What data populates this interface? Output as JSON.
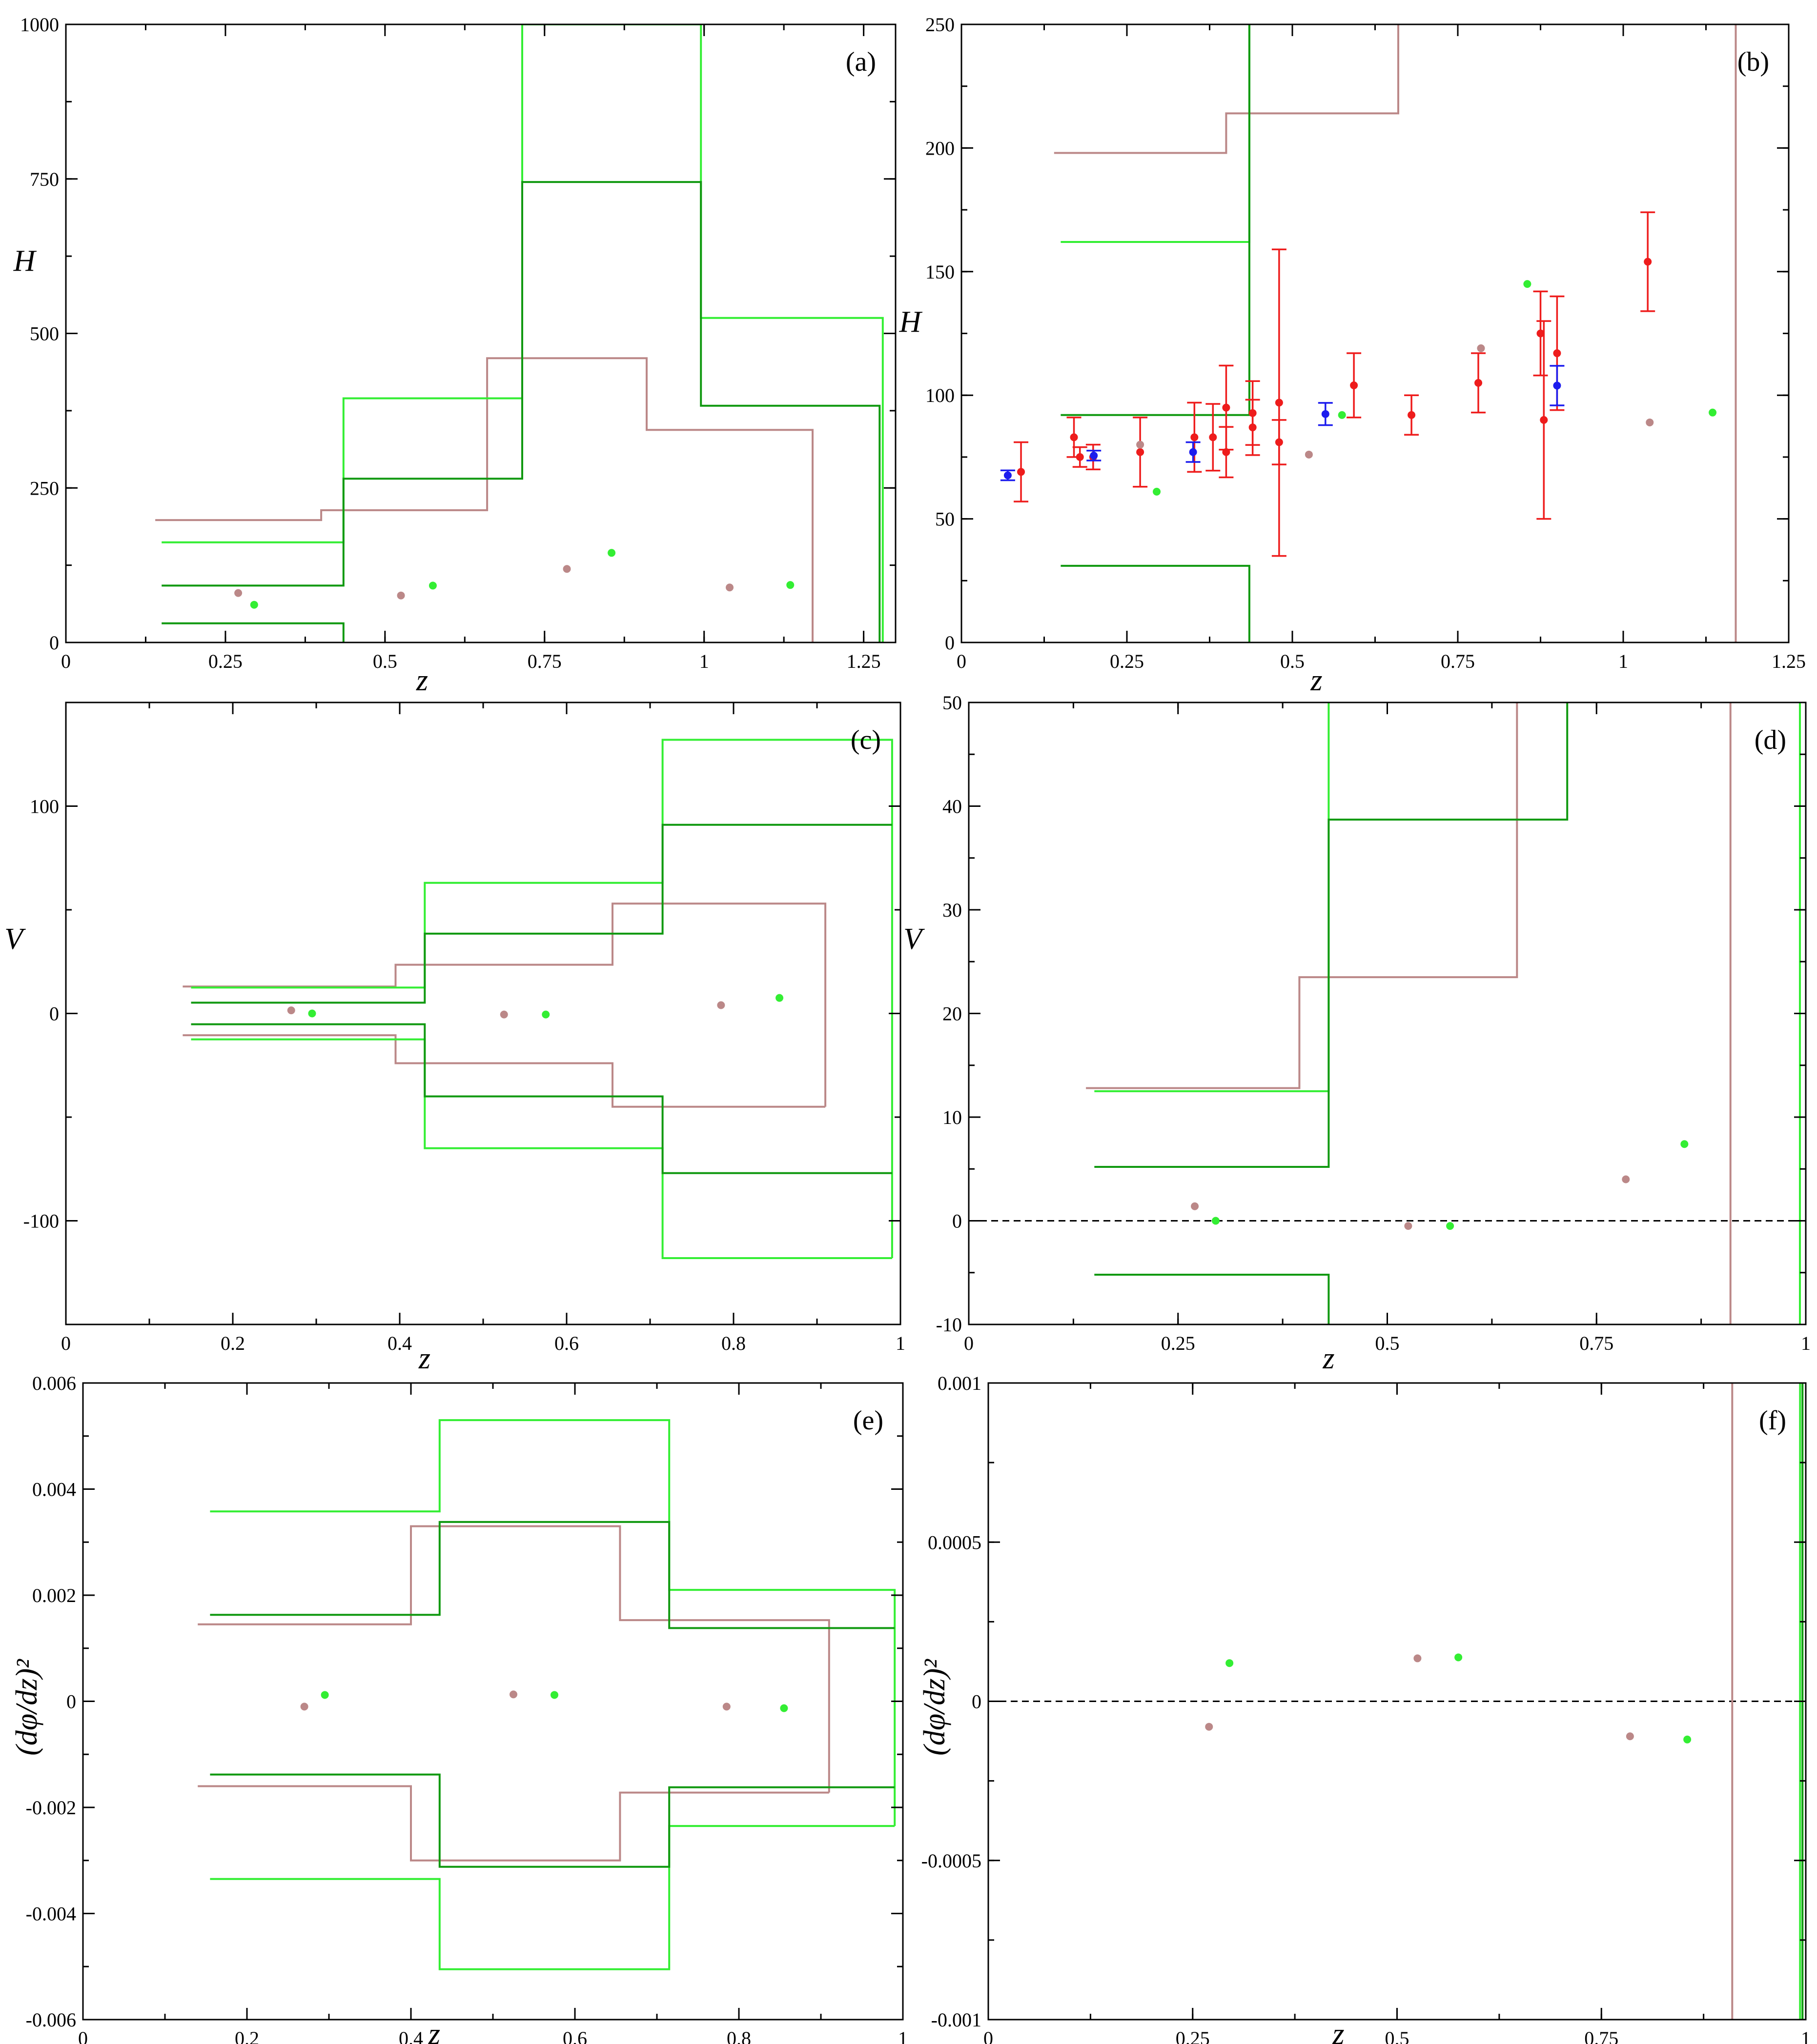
{
  "figure": {
    "colors": {
      "light_green": "#33ee33",
      "dark_green": "#119911",
      "brown": "#bb8888",
      "red": "#ee1c1c",
      "blue": "#1c1cee",
      "black": "#000000"
    }
  },
  "chart_data": [
    {
      "id": "a",
      "type": "line",
      "panel_label": "(a)",
      "xlabel": "z",
      "ylabel": "H",
      "xlim": [
        0,
        1.3
      ],
      "ylim": [
        0,
        1000
      ],
      "xticks": [
        0,
        0.25,
        0.5,
        0.75,
        1,
        1.25
      ],
      "xtick_labels": [
        "0",
        "0.25",
        "0.5",
        "0.75",
        "1",
        "1.25"
      ],
      "xminor": 0.125,
      "yticks": [
        0,
        250,
        500,
        750,
        1000
      ],
      "ytick_labels": [
        "0",
        "250",
        "500",
        "750",
        "1000"
      ],
      "yminor": 125,
      "steps": [
        {
          "color": "brown",
          "x": [
            0.14,
            0.4,
            0.4,
            0.66,
            0.66,
            0.91,
            0.91,
            1.17,
            1.17
          ],
          "y": [
            198,
            198,
            214,
            214,
            460,
            460,
            344,
            344,
            0
          ]
        },
        {
          "color": "light_green",
          "x": [
            0.15,
            0.435,
            0.435,
            0.715,
            0.715,
            0.995,
            0.995,
            1.28,
            1.28
          ],
          "y": [
            162,
            162,
            395,
            395,
            1000,
            1000,
            525,
            525,
            0
          ]
        },
        {
          "color": "dark_green",
          "x": [
            0.15,
            0.435,
            0.435,
            0.715,
            0.715,
            0.995,
            0.995,
            1.275,
            1.275
          ],
          "y": [
            92,
            92,
            265,
            265,
            745,
            745,
            383,
            383,
            0
          ]
        },
        {
          "color": "dark_green",
          "x": [
            0.15,
            0.435,
            0.435
          ],
          "y": [
            31,
            31,
            0
          ]
        }
      ],
      "points": [
        {
          "color": "brown",
          "x": [
            0.27,
            0.525,
            0.785,
            1.04
          ],
          "y": [
            80,
            76,
            119,
            89
          ]
        },
        {
          "color": "light_green",
          "x": [
            0.295,
            0.575,
            0.855,
            1.135
          ],
          "y": [
            61,
            92,
            145,
            93
          ]
        }
      ]
    },
    {
      "id": "b",
      "type": "line",
      "panel_label": "(b)",
      "xlabel": "z",
      "ylabel": "H",
      "xlim": [
        0,
        1.25
      ],
      "ylim": [
        0,
        250
      ],
      "xticks": [
        0,
        0.25,
        0.5,
        0.75,
        1,
        1.25
      ],
      "xtick_labels": [
        "0",
        "0.25",
        "0.5",
        "0.75",
        "1",
        "1.25"
      ],
      "xminor": 0.125,
      "yticks": [
        0,
        50,
        100,
        150,
        200,
        250
      ],
      "ytick_labels": [
        "0",
        "50",
        "100",
        "150",
        "200",
        "250"
      ],
      "yminor": 25,
      "steps": [
        {
          "color": "brown",
          "x": [
            0.14,
            0.4,
            0.4,
            0.66,
            0.66
          ],
          "y": [
            198,
            198,
            214,
            214,
            250
          ]
        },
        {
          "color": "brown",
          "x": [
            1.17,
            1.17
          ],
          "y": [
            0,
            250
          ]
        },
        {
          "color": "light_green",
          "x": [
            0.15,
            0.435,
            0.435
          ],
          "y": [
            162,
            162,
            250
          ]
        },
        {
          "color": "dark_green",
          "x": [
            0.15,
            0.435,
            0.435
          ],
          "y": [
            92,
            92,
            250
          ]
        },
        {
          "color": "dark_green",
          "x": [
            0.15,
            0.435,
            0.435
          ],
          "y": [
            31,
            31,
            0
          ]
        }
      ],
      "points": [
        {
          "color": "brown",
          "x": [
            0.27,
            0.525,
            0.785,
            1.04
          ],
          "y": [
            80,
            76,
            119,
            89
          ]
        },
        {
          "color": "light_green",
          "x": [
            0.295,
            0.575,
            0.855,
            1.135
          ],
          "y": [
            61,
            92,
            145,
            93
          ]
        }
      ],
      "errorbars": [
        {
          "color": "red",
          "x": [
            0.09,
            0.17,
            0.179,
            0.199,
            0.27,
            0.352,
            0.38,
            0.4,
            0.4,
            0.44,
            0.44,
            0.48,
            0.48,
            0.593,
            0.68,
            0.781,
            0.875,
            0.88,
            0.9,
            1.037
          ],
          "y": [
            69,
            83,
            75,
            75,
            77,
            83,
            83,
            95,
            77,
            87,
            92.8,
            97,
            81,
            104,
            92,
            105,
            125,
            90,
            117,
            154
          ],
          "err": [
            12,
            8,
            4,
            5,
            14,
            14,
            13.5,
            17,
            10.2,
            11.2,
            12.9,
            62,
            9,
            13,
            8,
            12,
            17,
            40,
            23,
            20
          ]
        },
        {
          "color": "blue",
          "x": [
            0.07,
            0.2,
            0.35,
            0.55,
            0.9
          ],
          "y": [
            67.6,
            75.6,
            77,
            92.4,
            103.9
          ],
          "err": [
            2,
            2,
            4,
            4.5,
            8
          ]
        }
      ]
    },
    {
      "id": "c",
      "type": "line",
      "panel_label": "(c)",
      "xlabel": "z",
      "ylabel": "V",
      "xlim": [
        0,
        1
      ],
      "ylim": [
        -150,
        150
      ],
      "xticks": [
        0,
        0.2,
        0.4,
        0.6,
        0.8,
        1
      ],
      "xtick_labels": [
        "0",
        "0.2",
        "0.4",
        "0.6",
        "0.8",
        "1"
      ],
      "xminor": 0.1,
      "yticks": [
        -100,
        0,
        100
      ],
      "ytick_labels": [
        "-100",
        "0",
        "100"
      ],
      "yminor": 50,
      "steps": [
        {
          "color": "brown",
          "x": [
            0.14,
            0.395,
            0.395,
            0.655,
            0.655,
            0.91,
            0.91
          ],
          "y": [
            13,
            13,
            23.5,
            23.5,
            53,
            53,
            -45
          ]
        },
        {
          "color": "brown",
          "x": [
            0.14,
            0.395,
            0.395,
            0.655,
            0.655,
            0.91
          ],
          "y": [
            -10.5,
            -10.5,
            -24,
            -24,
            -45,
            -45
          ]
        },
        {
          "color": "light_green",
          "x": [
            0.15,
            0.43,
            0.43,
            0.715,
            0.715,
            0.99,
            0.99
          ],
          "y": [
            12.5,
            12.5,
            63,
            63,
            132,
            132,
            -118
          ]
        },
        {
          "color": "light_green",
          "x": [
            0.15,
            0.43,
            0.43,
            0.715,
            0.715,
            0.99
          ],
          "y": [
            -12.5,
            -12.5,
            -65,
            -65,
            -118,
            -118
          ]
        },
        {
          "color": "dark_green",
          "x": [
            0.15,
            0.43,
            0.43,
            0.715,
            0.715,
            0.99
          ],
          "y": [
            5.2,
            5.2,
            38.5,
            38.5,
            91,
            91
          ]
        },
        {
          "color": "dark_green",
          "x": [
            0.15,
            0.43,
            0.43,
            0.715,
            0.715,
            0.99
          ],
          "y": [
            -5.2,
            -5.2,
            -40,
            -40,
            -77,
            -77
          ]
        }
      ],
      "points": [
        {
          "color": "brown",
          "x": [
            0.27,
            0.525,
            0.785
          ],
          "y": [
            1.5,
            -0.5,
            4
          ]
        },
        {
          "color": "light_green",
          "x": [
            0.295,
            0.575,
            0.855
          ],
          "y": [
            0,
            -0.5,
            7.5
          ]
        }
      ]
    },
    {
      "id": "d",
      "type": "line",
      "panel_label": "(d)",
      "xlabel": "z",
      "ylabel": "V",
      "xlim": [
        0,
        1
      ],
      "ylim": [
        -10,
        50
      ],
      "xticks": [
        0,
        0.25,
        0.5,
        0.75,
        1
      ],
      "xtick_labels": [
        "0",
        "0.25",
        "0.5",
        "0.75",
        "1"
      ],
      "xminor": 0.125,
      "yticks": [
        -10,
        0,
        10,
        20,
        30,
        40,
        50
      ],
      "ytick_labels": [
        "-10",
        "0",
        "10",
        "20",
        "30",
        "40",
        "50"
      ],
      "yminor": 5,
      "zero_line": true,
      "steps": [
        {
          "color": "brown",
          "x": [
            0.14,
            0.395,
            0.395,
            0.655,
            0.655
          ],
          "y": [
            12.8,
            12.8,
            23.5,
            23.5,
            50
          ]
        },
        {
          "color": "brown",
          "x": [
            0.91,
            0.91
          ],
          "y": [
            -10,
            50
          ]
        },
        {
          "color": "light_green",
          "x": [
            0.15,
            0.43,
            0.43
          ],
          "y": [
            12.5,
            12.5,
            50
          ]
        },
        {
          "color": "light_green",
          "x": [
            0.993,
            0.993
          ],
          "y": [
            -10,
            50
          ]
        },
        {
          "color": "dark_green",
          "x": [
            0.15,
            0.43,
            0.43,
            0.715,
            0.715
          ],
          "y": [
            5.2,
            5.2,
            38.7,
            38.7,
            50
          ]
        },
        {
          "color": "dark_green",
          "x": [
            0.15,
            0.43,
            0.43
          ],
          "y": [
            -5.2,
            -5.2,
            -10
          ]
        }
      ],
      "points": [
        {
          "color": "brown",
          "x": [
            0.27,
            0.525,
            0.785
          ],
          "y": [
            1.4,
            -0.5,
            4
          ]
        },
        {
          "color": "light_green",
          "x": [
            0.295,
            0.575,
            0.855
          ],
          "y": [
            0,
            -0.5,
            7.4
          ]
        }
      ]
    },
    {
      "id": "e",
      "type": "line",
      "panel_label": "(e)",
      "xlabel": "z",
      "ylabel": "(dφ/dz)²",
      "xlim": [
        0,
        1
      ],
      "ylim": [
        -0.006,
        0.006
      ],
      "xticks": [
        0,
        0.2,
        0.4,
        0.6,
        0.8,
        1
      ],
      "xtick_labels": [
        "0",
        "0.2",
        "0.4",
        "0.6",
        "0.8",
        "1"
      ],
      "xminor": 0.1,
      "yticks": [
        -0.006,
        -0.004,
        -0.002,
        0,
        0.002,
        0.004,
        0.006
      ],
      "ytick_labels": [
        "-0.006",
        "-0.004",
        "-0.002",
        "0",
        "0.002",
        "0.004",
        "0.006"
      ],
      "yminor": 0.001,
      "steps": [
        {
          "color": "brown",
          "x": [
            0.14,
            0.4,
            0.4,
            0.655,
            0.655,
            0.91,
            0.91
          ],
          "y": [
            0.00145,
            0.00145,
            0.0033,
            0.0033,
            0.00153,
            0.00153,
            -0.00172
          ]
        },
        {
          "color": "brown",
          "x": [
            0.14,
            0.4,
            0.4,
            0.655,
            0.655,
            0.91
          ],
          "y": [
            -0.0016,
            -0.0016,
            -0.003,
            -0.003,
            -0.00172,
            -0.00172
          ]
        },
        {
          "color": "light_green",
          "x": [
            0.155,
            0.435,
            0.435,
            0.715,
            0.715,
            0.99,
            0.99
          ],
          "y": [
            0.00358,
            0.00358,
            0.0053,
            0.0053,
            0.0021,
            0.0021,
            -0.00235
          ]
        },
        {
          "color": "light_green",
          "x": [
            0.155,
            0.435,
            0.435,
            0.715,
            0.715,
            0.99
          ],
          "y": [
            -0.00335,
            -0.00335,
            -0.00505,
            -0.00505,
            -0.00235,
            -0.00235
          ]
        },
        {
          "color": "dark_green",
          "x": [
            0.155,
            0.435,
            0.435,
            0.715,
            0.715,
            0.99
          ],
          "y": [
            0.00163,
            0.00163,
            0.00338,
            0.00338,
            0.00138,
            0.00138
          ]
        },
        {
          "color": "dark_green",
          "x": [
            0.155,
            0.435,
            0.435,
            0.715,
            0.715,
            0.99
          ],
          "y": [
            -0.00138,
            -0.00138,
            -0.00312,
            -0.00312,
            -0.00162,
            -0.00162
          ]
        }
      ],
      "points": [
        {
          "color": "brown",
          "x": [
            0.27,
            0.525,
            0.785
          ],
          "y": [
            -0.0001,
            0.00013,
            -0.0001
          ]
        },
        {
          "color": "light_green",
          "x": [
            0.295,
            0.575,
            0.855
          ],
          "y": [
            0.00012,
            0.00012,
            -0.00013
          ]
        }
      ]
    },
    {
      "id": "f",
      "type": "line",
      "panel_label": "(f)",
      "xlabel": "z",
      "ylabel": "(dφ/dz)²",
      "xlim": [
        0,
        1
      ],
      "ylim": [
        -0.001,
        0.001
      ],
      "xticks": [
        0,
        0.25,
        0.5,
        0.75,
        1
      ],
      "xtick_labels": [
        "0",
        "0.25",
        "0.5",
        "0.75",
        "1"
      ],
      "xminor": 0.125,
      "yticks": [
        -0.001,
        -0.0005,
        0,
        0.0005,
        0.001
      ],
      "ytick_labels": [
        "-0.001",
        "-0.0005",
        "0",
        "0.0005",
        "0.001"
      ],
      "yminor": 0.00025,
      "zero_line": true,
      "steps": [
        {
          "color": "brown",
          "x": [
            0.91,
            0.91
          ],
          "y": [
            -0.001,
            0.001
          ]
        },
        {
          "color": "light_green",
          "x": [
            0.993,
            0.993
          ],
          "y": [
            -0.001,
            0.001
          ]
        },
        {
          "color": "dark_green",
          "x": [
            0.996,
            0.996
          ],
          "y": [
            -0.001,
            0.001
          ]
        }
      ],
      "points": [
        {
          "color": "brown",
          "x": [
            0.27,
            0.525,
            0.785
          ],
          "y": [
            -8e-05,
            0.000135,
            -0.00011
          ]
        },
        {
          "color": "light_green",
          "x": [
            0.295,
            0.575,
            0.855
          ],
          "y": [
            0.00012,
            0.000138,
            -0.00012
          ]
        }
      ]
    }
  ]
}
